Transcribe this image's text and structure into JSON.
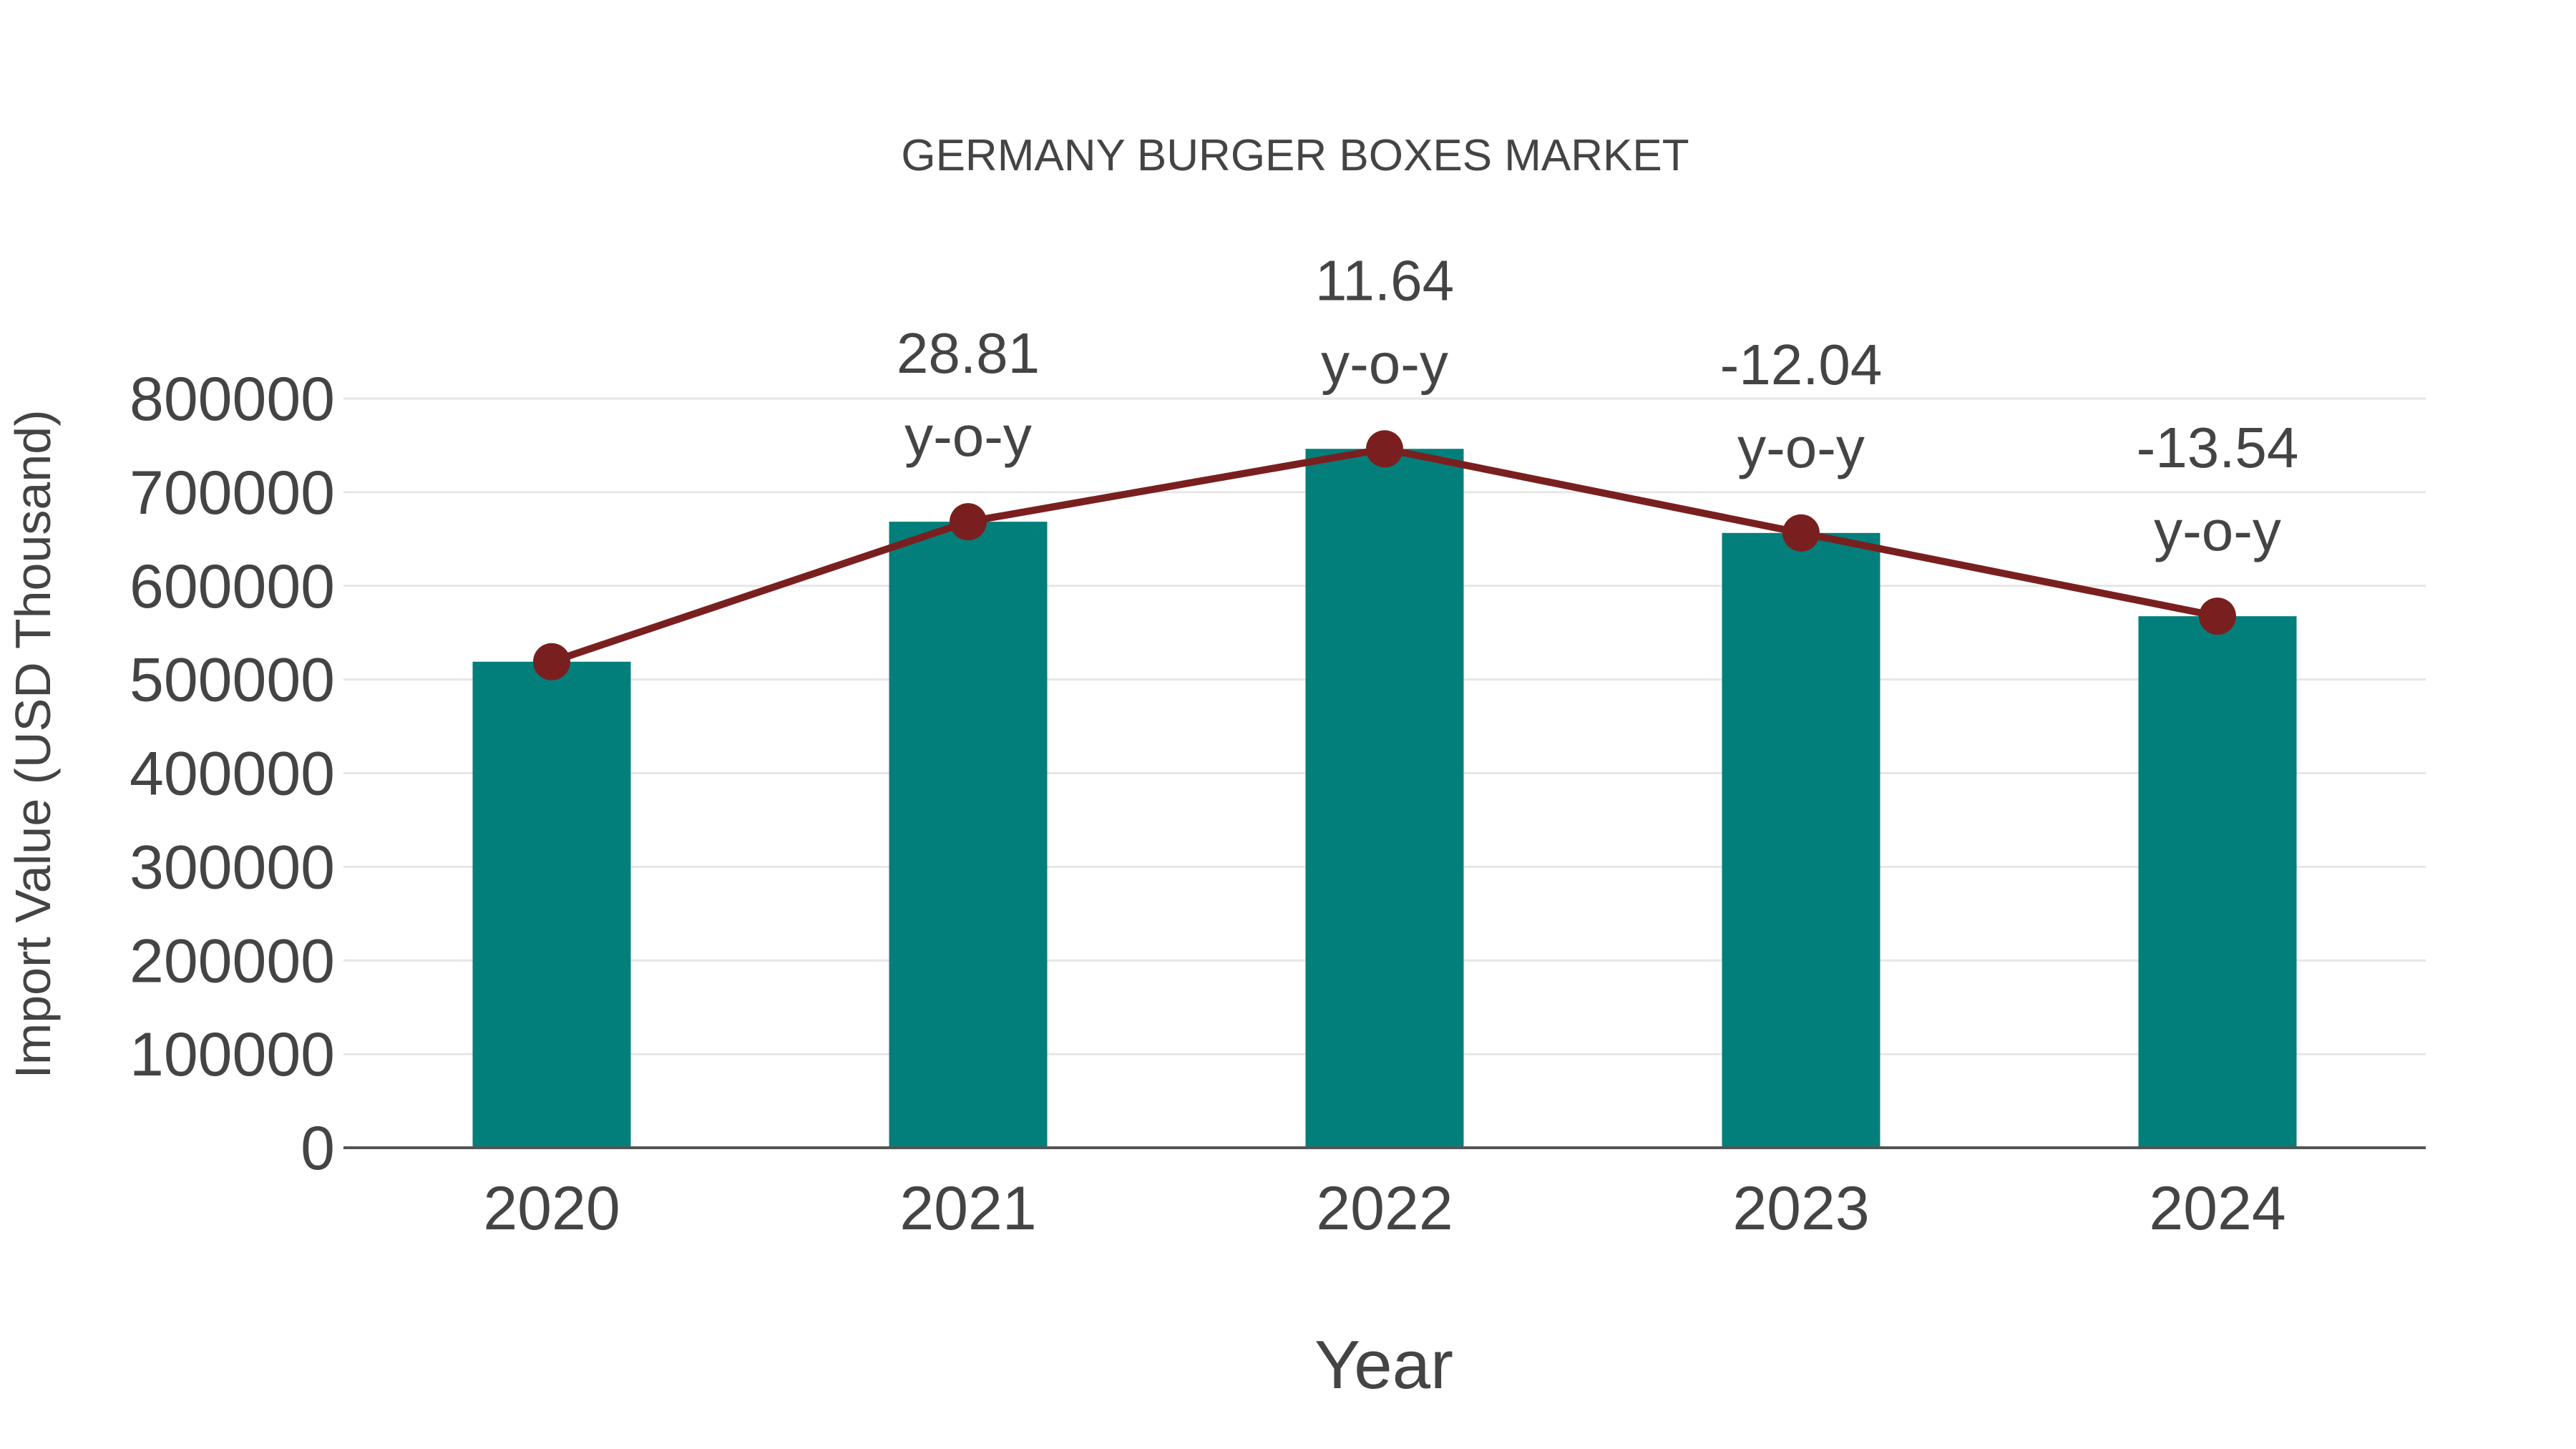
{
  "chart_data": {
    "type": "bar",
    "title": "GERMANY BURGER BOXES MARKET",
    "xlabel": "Year",
    "ylabel": "Import Value (USD Thousand)",
    "categories": [
      "2020",
      "2021",
      "2022",
      "2023",
      "2024"
    ],
    "series": [
      {
        "name": "Import Value",
        "type": "bar",
        "color": "#037F7B",
        "values": [
          519000,
          668500,
          746300,
          656500,
          567600
        ]
      },
      {
        "name": "Trend",
        "type": "line",
        "color": "#7A1F1F",
        "values": [
          519000,
          668500,
          746300,
          656500,
          567600
        ]
      }
    ],
    "annotations": [
      {
        "category": "2021",
        "value": "28.81",
        "suffix": "y-o-y"
      },
      {
        "category": "2022",
        "value": "11.64",
        "suffix": "y-o-y"
      },
      {
        "category": "2023",
        "value": "-12.04",
        "suffix": "y-o-y"
      },
      {
        "category": "2024",
        "value": "-13.54",
        "suffix": "y-o-y"
      }
    ],
    "yticks": [
      "0",
      "100000",
      "200000",
      "300000",
      "400000",
      "500000",
      "600000",
      "700000",
      "800000"
    ],
    "ylim": [
      0,
      800000
    ],
    "grid": true,
    "legend": "none"
  }
}
